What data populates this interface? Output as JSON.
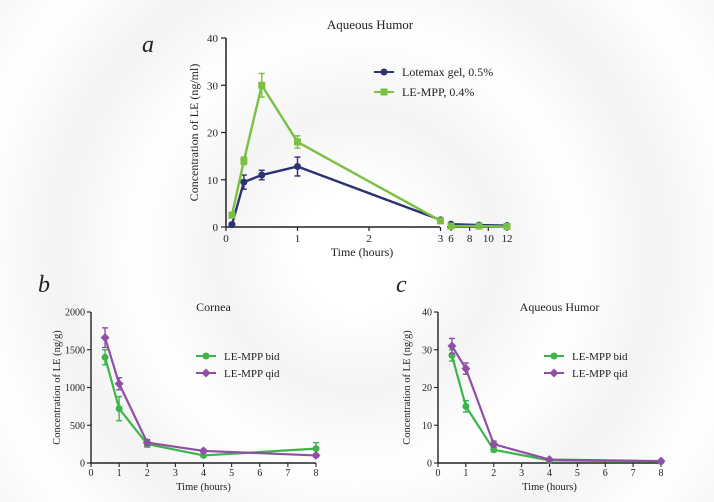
{
  "colors": {
    "navy": "#2c3272",
    "green": "#79c043",
    "green2": "#3cb54a",
    "purple": "#8e4fa5",
    "axis": "#222222"
  },
  "chart_data": [
    {
      "type": "line",
      "panel": "a",
      "title": "Aqueous Humor",
      "xlabel": "Time (hours)",
      "ylabel": "Concentration of LE (ng/ml)",
      "ylim": [
        0,
        40
      ],
      "yticks": [
        "0",
        "10",
        "20",
        "30",
        "40"
      ],
      "xticks_main": [
        "0",
        "1",
        "2",
        "3"
      ],
      "xticks_break": [
        "6",
        "8",
        "10",
        "12"
      ],
      "legend": "top-right",
      "series": [
        {
          "name": "Lotemax gel, 0.5%",
          "color": "#2c3272",
          "marker": "circle",
          "x": [
            0.083,
            0.25,
            0.5,
            1,
            3,
            6,
            9,
            12
          ],
          "y": [
            0.5,
            9.5,
            11,
            12.8,
            1.5,
            0.6,
            0.4,
            0.3
          ],
          "err": [
            0.4,
            1.5,
            1.0,
            2.0,
            0.3,
            0.2,
            0.2,
            0.1
          ]
        },
        {
          "name": "LE-MPP, 0.4%",
          "color": "#79c043",
          "marker": "square",
          "x": [
            0.083,
            0.25,
            0.5,
            1,
            3,
            6,
            9,
            12
          ],
          "y": [
            2.5,
            14,
            30,
            18,
            1.3,
            0.2,
            0.2,
            0.1
          ],
          "err": [
            0.5,
            0.8,
            2.5,
            1.3,
            0.3,
            0.1,
            0.1,
            0.1
          ]
        }
      ]
    },
    {
      "type": "line",
      "panel": "b",
      "title": "Cornea",
      "xlabel": "Time (hours)",
      "ylabel": "Concentration of LE (ng/g)",
      "ylim": [
        0,
        2000
      ],
      "xlim": [
        0,
        8
      ],
      "yticks": [
        "0",
        "500",
        "1000",
        "1500",
        "2000"
      ],
      "xticks": [
        "0",
        "1",
        "2",
        "3",
        "4",
        "5",
        "6",
        "7",
        "8"
      ],
      "legend": "top-right",
      "series": [
        {
          "name": "LE-MPP bid",
          "color": "#3cb54a",
          "marker": "circle",
          "x": [
            0.5,
            1,
            2,
            4,
            8
          ],
          "y": [
            1400,
            720,
            250,
            100,
            190
          ],
          "err": [
            100,
            160,
            40,
            20,
            80
          ]
        },
        {
          "name": "LE-MPP qid",
          "color": "#8e4fa5",
          "marker": "diamond",
          "x": [
            0.5,
            1,
            2,
            4,
            8
          ],
          "y": [
            1660,
            1050,
            270,
            160,
            100
          ],
          "err": [
            130,
            80,
            40,
            20,
            20
          ]
        }
      ]
    },
    {
      "type": "line",
      "panel": "c",
      "title": "Aqueous Humor",
      "xlabel": "Time (hours)",
      "ylabel": "Concentration of LE (ng/g)",
      "ylim": [
        0,
        40
      ],
      "xlim": [
        0,
        8
      ],
      "yticks": [
        "0",
        "10",
        "20",
        "30",
        "40"
      ],
      "xticks": [
        "0",
        "1",
        "2",
        "3",
        "4",
        "5",
        "6",
        "7",
        "8"
      ],
      "legend": "top-right",
      "series": [
        {
          "name": "LE-MPP bid",
          "color": "#3cb54a",
          "marker": "circle",
          "x": [
            0.5,
            1,
            2,
            4,
            8
          ],
          "y": [
            28.5,
            15,
            3.5,
            0.7,
            0.4
          ],
          "err": [
            1.5,
            1.5,
            0.5,
            0.2,
            0.1
          ]
        },
        {
          "name": "LE-MPP qid",
          "color": "#8e4fa5",
          "marker": "diamond",
          "x": [
            0.5,
            1,
            2,
            4,
            8
          ],
          "y": [
            31,
            25,
            5,
            0.9,
            0.5
          ],
          "err": [
            2.0,
            1.5,
            0.8,
            0.2,
            0.1
          ]
        }
      ]
    }
  ]
}
